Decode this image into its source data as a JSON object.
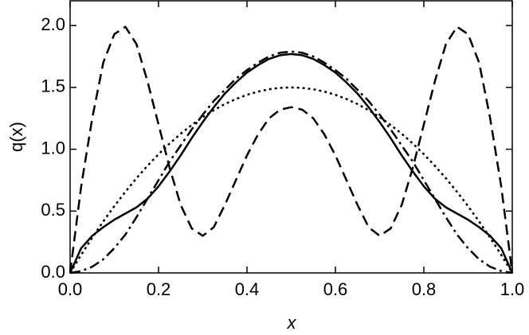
{
  "chart_data": {
    "type": "line",
    "xlabel": "x",
    "ylabel": "q(x)",
    "x": [
      0,
      0.025,
      0.05,
      0.075,
      0.1,
      0.125,
      0.15,
      0.175,
      0.2,
      0.225,
      0.25,
      0.275,
      0.3,
      0.325,
      0.35,
      0.375,
      0.4,
      0.425,
      0.45,
      0.475,
      0.5,
      0.525,
      0.55,
      0.575,
      0.6,
      0.625,
      0.65,
      0.675,
      0.7,
      0.725,
      0.75,
      0.775,
      0.8,
      0.825,
      0.85,
      0.875,
      0.9,
      0.925,
      0.95,
      0.975,
      1
    ],
    "series": [
      {
        "color": "#000000",
        "linestyle": "solid",
        "values": [
          0,
          0.2,
          0.3,
          0.37,
          0.43,
          0.48,
          0.53,
          0.6,
          0.7,
          0.82,
          0.95,
          1.09,
          1.22,
          1.34,
          1.45,
          1.54,
          1.62,
          1.68,
          1.73,
          1.76,
          1.77,
          1.76,
          1.73,
          1.68,
          1.62,
          1.54,
          1.45,
          1.34,
          1.22,
          1.09,
          0.95,
          0.82,
          0.7,
          0.6,
          0.53,
          0.48,
          0.43,
          0.37,
          0.3,
          0.2,
          0
        ]
      },
      {
        "color": "#000000",
        "linestyle": "dashed",
        "values": [
          0,
          0.7,
          1.25,
          1.7,
          1.93,
          1.99,
          1.85,
          1.55,
          1.2,
          0.85,
          0.55,
          0.36,
          0.3,
          0.37,
          0.55,
          0.75,
          0.95,
          1.12,
          1.25,
          1.32,
          1.34,
          1.32,
          1.25,
          1.12,
          0.95,
          0.75,
          0.55,
          0.37,
          0.3,
          0.36,
          0.55,
          0.85,
          1.2,
          1.55,
          1.85,
          1.99,
          1.93,
          1.7,
          1.25,
          0.7,
          0
        ]
      },
      {
        "color": "#000000",
        "linestyle": "dotted",
        "values": [
          0,
          0.146,
          0.285,
          0.416,
          0.54,
          0.656,
          0.765,
          0.866,
          0.96,
          1.046,
          1.125,
          1.196,
          1.26,
          1.316,
          1.365,
          1.406,
          1.44,
          1.466,
          1.485,
          1.496,
          1.5,
          1.496,
          1.485,
          1.466,
          1.44,
          1.406,
          1.365,
          1.316,
          1.26,
          1.196,
          1.125,
          1.046,
          0.96,
          0.866,
          0.765,
          0.656,
          0.54,
          0.416,
          0.285,
          0.146,
          0
        ]
      },
      {
        "color": "#000000",
        "linestyle": "dashdot",
        "values": [
          0,
          0.015,
          0.05,
          0.11,
          0.2,
          0.31,
          0.45,
          0.6,
          0.75,
          0.9,
          1.03,
          1.16,
          1.28,
          1.39,
          1.48,
          1.57,
          1.64,
          1.7,
          1.75,
          1.78,
          1.79,
          1.78,
          1.75,
          1.7,
          1.64,
          1.57,
          1.48,
          1.39,
          1.28,
          1.16,
          1.03,
          0.9,
          0.75,
          0.6,
          0.45,
          0.31,
          0.2,
          0.11,
          0.05,
          0.015,
          0
        ]
      }
    ],
    "xlim": [
      0,
      1
    ],
    "xticks": [
      {
        "value": 0,
        "label": "0.0"
      },
      {
        "value": 0.2,
        "label": "0.2"
      },
      {
        "value": 0.4,
        "label": "0.4"
      },
      {
        "value": 0.6,
        "label": "0.6"
      },
      {
        "value": 0.8,
        "label": "0.8"
      },
      {
        "value": 1,
        "label": "1.0"
      }
    ],
    "ylim": [
      0,
      2.2
    ],
    "yticks": [
      {
        "value": 0,
        "label": "0.0"
      },
      {
        "value": 0.5,
        "label": "0.5"
      },
      {
        "value": 1,
        "label": "1.0"
      },
      {
        "value": 1.5,
        "label": "1.5"
      },
      {
        "value": 2,
        "label": "2.0"
      }
    ],
    "grid": false
  }
}
